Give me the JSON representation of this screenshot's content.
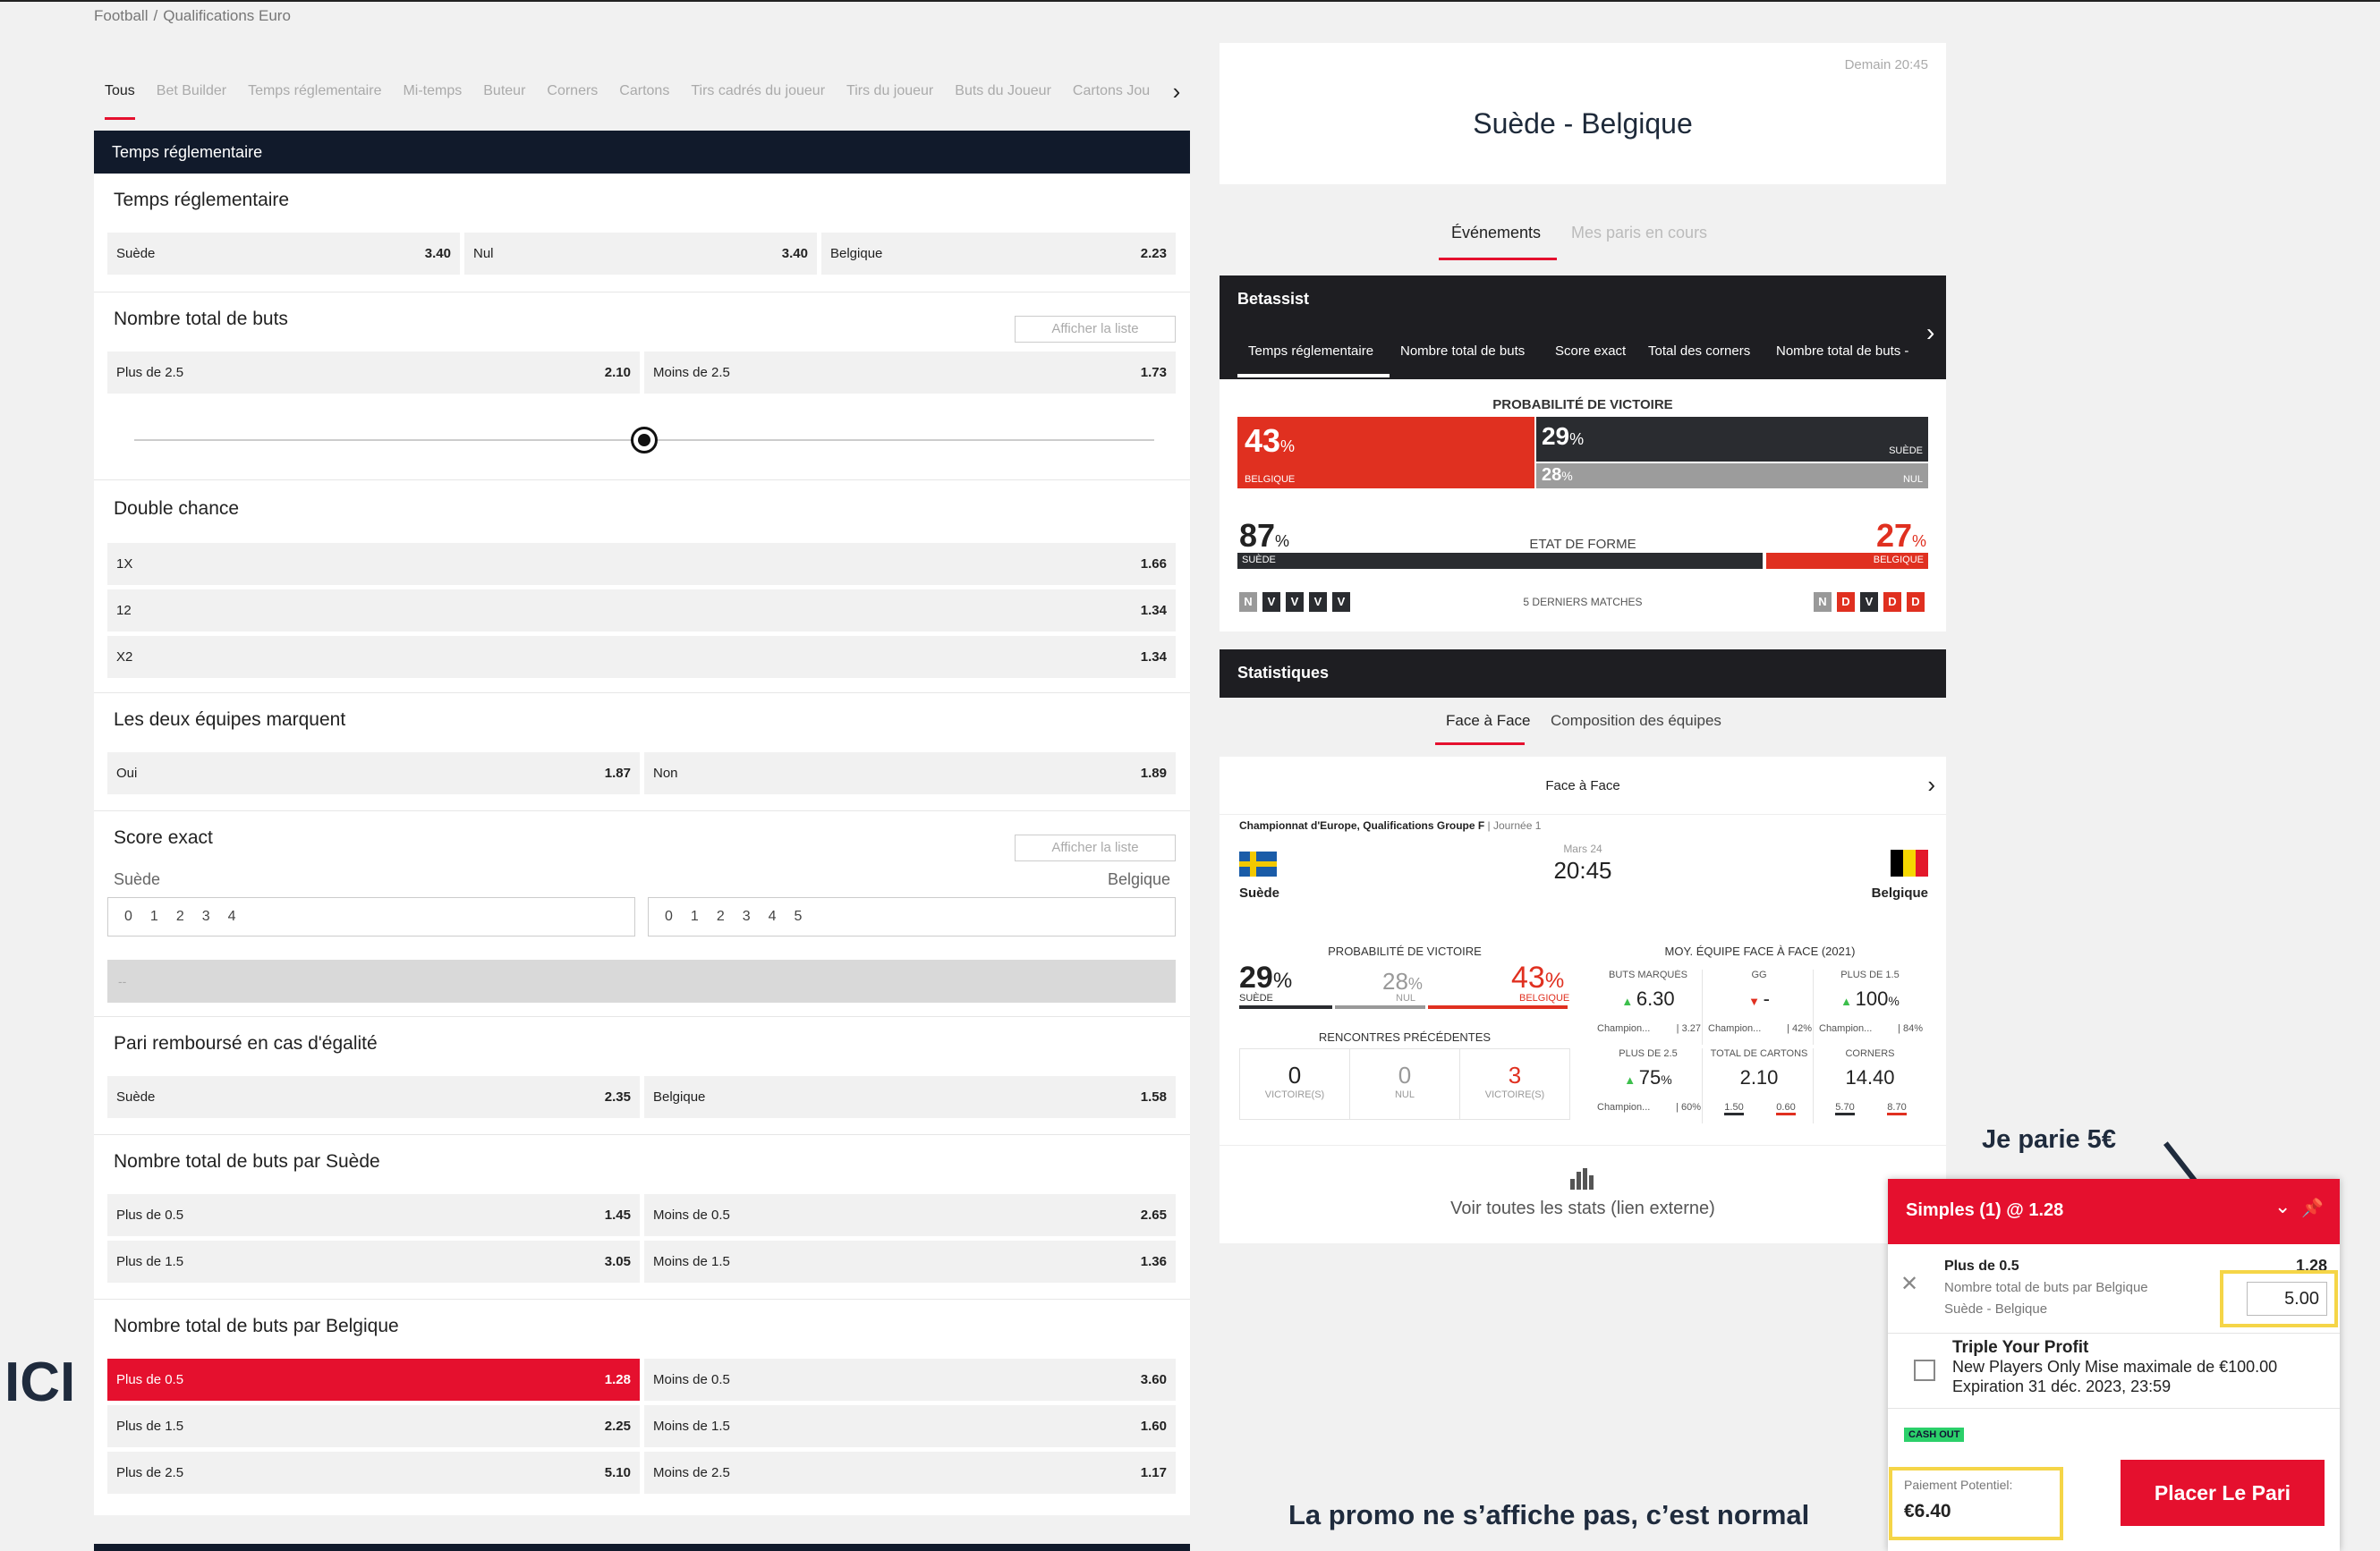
{
  "breadcrumb": {
    "items": [
      "Football",
      "/",
      "Qualifications Euro"
    ]
  },
  "tabs": [
    "Tous",
    "Bet Builder",
    "Temps réglementaire",
    "Mi-temps",
    "Buteur",
    "Corners",
    "Cartons",
    "Tirs cadrés du joueur",
    "Tirs du joueur",
    "Buts du Joueur",
    "Cartons Jou"
  ],
  "section_header": "Temps réglementaire",
  "markets": {
    "reg": {
      "title": "Temps réglementaire",
      "odds": [
        {
          "label": "Suède",
          "value": "3.40"
        },
        {
          "label": "Nul",
          "value": "3.40"
        },
        {
          "label": "Belgique",
          "value": "2.23"
        }
      ]
    },
    "total": {
      "title": "Nombre total de buts",
      "list_btn": "Afficher la liste",
      "odds": [
        {
          "label": "Plus de 2.5",
          "value": "2.10"
        },
        {
          "label": "Moins de 2.5",
          "value": "1.73"
        }
      ],
      "slider_level": 0.5
    },
    "double": {
      "title": "Double chance",
      "odds": [
        {
          "label": "1X",
          "value": "1.66"
        },
        {
          "label": "12",
          "value": "1.34"
        },
        {
          "label": "X2",
          "value": "1.34"
        }
      ]
    },
    "btts": {
      "title": "Les deux équipes marquent",
      "odds": [
        {
          "label": "Oui",
          "value": "1.87"
        },
        {
          "label": "Non",
          "value": "1.89"
        }
      ]
    },
    "exact": {
      "title": "Score exact",
      "list_btn": "Afficher la liste",
      "home": "Suède",
      "away": "Belgique",
      "home_scores": [
        "0",
        "1",
        "2",
        "3",
        "4"
      ],
      "away_scores": [
        "0",
        "1",
        "2",
        "3",
        "4",
        "5"
      ],
      "result": "--"
    },
    "dnb": {
      "title": "Pari remboursé en cas d'égalité",
      "odds": [
        {
          "label": "Suède",
          "value": "2.35"
        },
        {
          "label": "Belgique",
          "value": "1.58"
        }
      ]
    },
    "tot_se": {
      "title": "Nombre total de buts par Suède",
      "odds": [
        {
          "label": "Plus de 0.5",
          "value": "1.45"
        },
        {
          "label": "Moins de 0.5",
          "value": "2.65"
        },
        {
          "label": "Plus de 1.5",
          "value": "3.05"
        },
        {
          "label": "Moins de 1.5",
          "value": "1.36"
        }
      ]
    },
    "tot_be": {
      "title": "Nombre total de buts par Belgique",
      "odds": [
        {
          "label": "Plus de 0.5",
          "value": "1.28"
        },
        {
          "label": "Moins de 0.5",
          "value": "3.60"
        },
        {
          "label": "Plus de 1.5",
          "value": "2.25"
        },
        {
          "label": "Moins de 1.5",
          "value": "1.60"
        },
        {
          "label": "Plus de 2.5",
          "value": "5.10"
        },
        {
          "label": "Moins de 2.5",
          "value": "1.17"
        }
      ]
    }
  },
  "match": {
    "time": "Demain 20:45",
    "title": "Suède - Belgique"
  },
  "right_tabs": [
    "Événements",
    "Mes paris en cours"
  ],
  "betassist": {
    "title": "Betassist",
    "tabs": [
      "Temps réglementaire",
      "Nombre total de buts",
      "Score exact",
      "Total des corners",
      "Nombre total de buts - "
    ],
    "prob_title": "PROBABILITÉ DE VICTOIRE",
    "belgique_pct": "43",
    "suede_pct": "29",
    "nul_pct": "28",
    "pct_sign": "%",
    "belgique_lbl": "BELGIQUE",
    "suede_lbl": "SUÈDE",
    "nul_lbl": "NUL",
    "form_title": "ETAT DE FORME",
    "form_suede": "87",
    "form_belgique": "27",
    "last5": "5 DERNIERS MATCHES",
    "suede_form": [
      "N",
      "V",
      "V",
      "V",
      "V"
    ],
    "belgique_form": [
      "N",
      "D",
      "V",
      "D",
      "D"
    ]
  },
  "stats": {
    "title": "Statistiques",
    "tabs": [
      "Face à Face",
      "Composition des équipes"
    ],
    "h2h": "Face à Face",
    "competition": "Championnat d'Europe, Qualifications Groupe F",
    "round": "Journée 1",
    "date": "Mars 24",
    "time": "20:45",
    "home": "Suède",
    "away": "Belgique",
    "prob_title": "PROBABILITÉ DE VICTOIRE",
    "p_home": "29",
    "p_draw": "28",
    "p_away": "43",
    "lbl_home": "SUÈDE",
    "lbl_draw": "NUL",
    "lbl_away": "BELGIQUE",
    "prev_title": "RENCONTRES PRÉCÉDENTES",
    "prev": [
      {
        "n": "0",
        "l": "VICTOIRE(S)"
      },
      {
        "n": "0",
        "l": "NUL"
      },
      {
        "n": "3",
        "l": "VICTOIRE(S)"
      }
    ],
    "avg_title": "MOY. ÉQUIPE FACE À FACE (2021)",
    "avg": [
      {
        "h": "BUTS MARQUÉS",
        "v": "6.30",
        "s1": "Champion...",
        "s2": "| 3.27"
      },
      {
        "h": "GG",
        "v": "-",
        "s1": "Champion...",
        "s2": "| 42%"
      },
      {
        "h": "PLUS DE 1.5",
        "v": "100",
        "u": "%",
        "s1": "Champion...",
        "s2": "| 84%"
      },
      {
        "h": "PLUS DE 2.5",
        "v": "75",
        "u": "%",
        "s1": "Champion...",
        "s2": "| 60%"
      },
      {
        "h": "TOTAL DE CARTONS",
        "v": "2.10",
        "s1": "1.50",
        "s2": "0.60"
      },
      {
        "h": "CORNERS",
        "v": "14.40",
        "s1": "5.70",
        "s2": "8.70"
      }
    ],
    "all_stats": "Voir toutes les stats (lien externe)"
  },
  "slip": {
    "title": "Simples (1) @ 1.28",
    "sel_name": "Plus de 0.5",
    "sel_odds": "1.28",
    "sel_market": "Nombre total de buts par Belgique",
    "sel_match": "Suède - Belgique",
    "stake": "5.00",
    "promo_title": "Triple Your Profit",
    "promo_line1": "New Players Only Mise maximale de €100.00",
    "promo_line2": "Expiration 31 déc. 2023, 23:59",
    "cashout": "CASH OUT",
    "payout_lbl": "Paiement Potentiel:",
    "payout": "€6.40",
    "place_btn": "Placer Le Pari"
  },
  "annotations": {
    "bet": "Je parie 5€",
    "here": "ICI",
    "promo": "La promo ne s’affiche pas, c’est normal"
  },
  "colors": {
    "accent": "#e5102e",
    "dark": "#1e1e22",
    "highlight": "#f5d547",
    "win": "#3cbf4c"
  }
}
